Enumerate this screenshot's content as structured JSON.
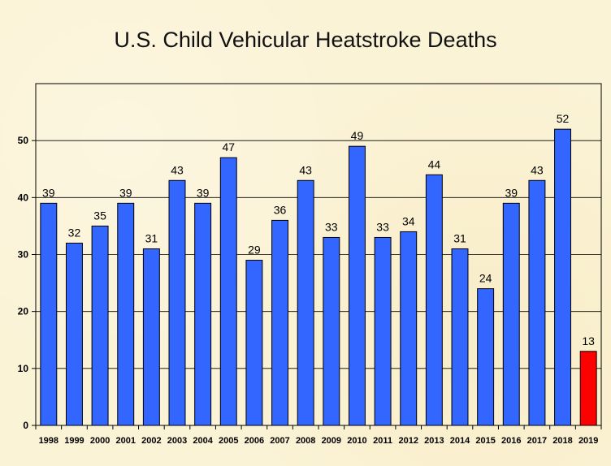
{
  "chart_data": {
    "type": "bar",
    "title": "U.S. Child Vehicular Heatstroke Deaths",
    "xlabel": "",
    "ylabel": "",
    "categories": [
      "1998",
      "1999",
      "2000",
      "2001",
      "2002",
      "2003",
      "2004",
      "2005",
      "2006",
      "2007",
      "2008",
      "2009",
      "2010",
      "2011",
      "2012",
      "2013",
      "2014",
      "2015",
      "2016",
      "2017",
      "2018",
      "2019"
    ],
    "values": [
      39,
      32,
      35,
      39,
      31,
      43,
      39,
      47,
      29,
      36,
      43,
      33,
      49,
      33,
      34,
      44,
      31,
      24,
      39,
      43,
      52,
      13
    ],
    "bar_colors": [
      "#3366ff",
      "#3366ff",
      "#3366ff",
      "#3366ff",
      "#3366ff",
      "#3366ff",
      "#3366ff",
      "#3366ff",
      "#3366ff",
      "#3366ff",
      "#3366ff",
      "#3366ff",
      "#3366ff",
      "#3366ff",
      "#3366ff",
      "#3366ff",
      "#3366ff",
      "#3366ff",
      "#3366ff",
      "#3366ff",
      "#3366ff",
      "#ff0000"
    ],
    "ylim": [
      0,
      60
    ],
    "yticks": [
      0,
      10,
      20,
      30,
      40,
      50
    ],
    "grid": true,
    "legend": "none",
    "data_labels": true
  },
  "colors": {
    "background": "#fbf3d6",
    "bar_default": "#3366ff",
    "bar_highlight": "#ff0000",
    "gridline": "#000000"
  }
}
